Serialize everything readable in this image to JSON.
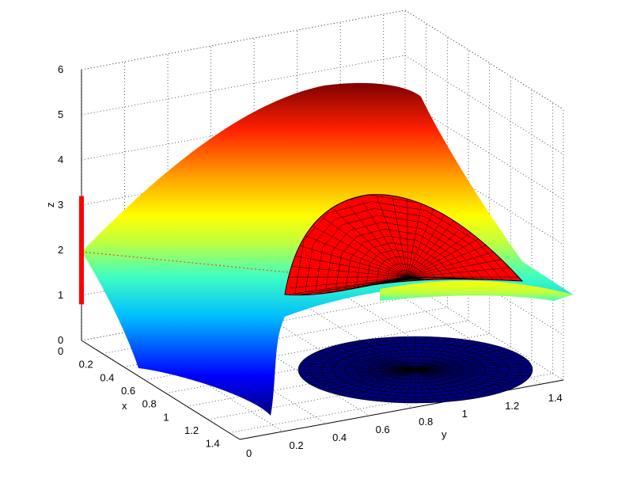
{
  "chart_data": {
    "type": "surface3d",
    "title": "",
    "xlabel": "x",
    "ylabel": "y",
    "zlabel": "z",
    "x_ticks": [
      "0",
      "0.2",
      "0.4",
      "0.6",
      "0.8",
      "1",
      "1.2",
      "1.4"
    ],
    "y_ticks": [
      "0",
      "0.2",
      "0.4",
      "0.6",
      "0.8",
      "1",
      "1.2",
      "1.4"
    ],
    "z_ticks": [
      "0",
      "1",
      "2",
      "3",
      "4",
      "5",
      "6"
    ],
    "xlim": [
      0,
      1.5
    ],
    "ylim": [
      0,
      1.5
    ],
    "zlim": [
      0,
      6
    ],
    "grid": true,
    "colormap": "jet",
    "series": [
      {
        "values": []
      }
    ],
    "marker_segment": {
      "z_range": [
        0.8,
        3.2
      ],
      "color": "#ff0000"
    },
    "colors": {
      "cap": "#ff0000",
      "disk": "#00007f",
      "mesh": "#000000"
    }
  }
}
